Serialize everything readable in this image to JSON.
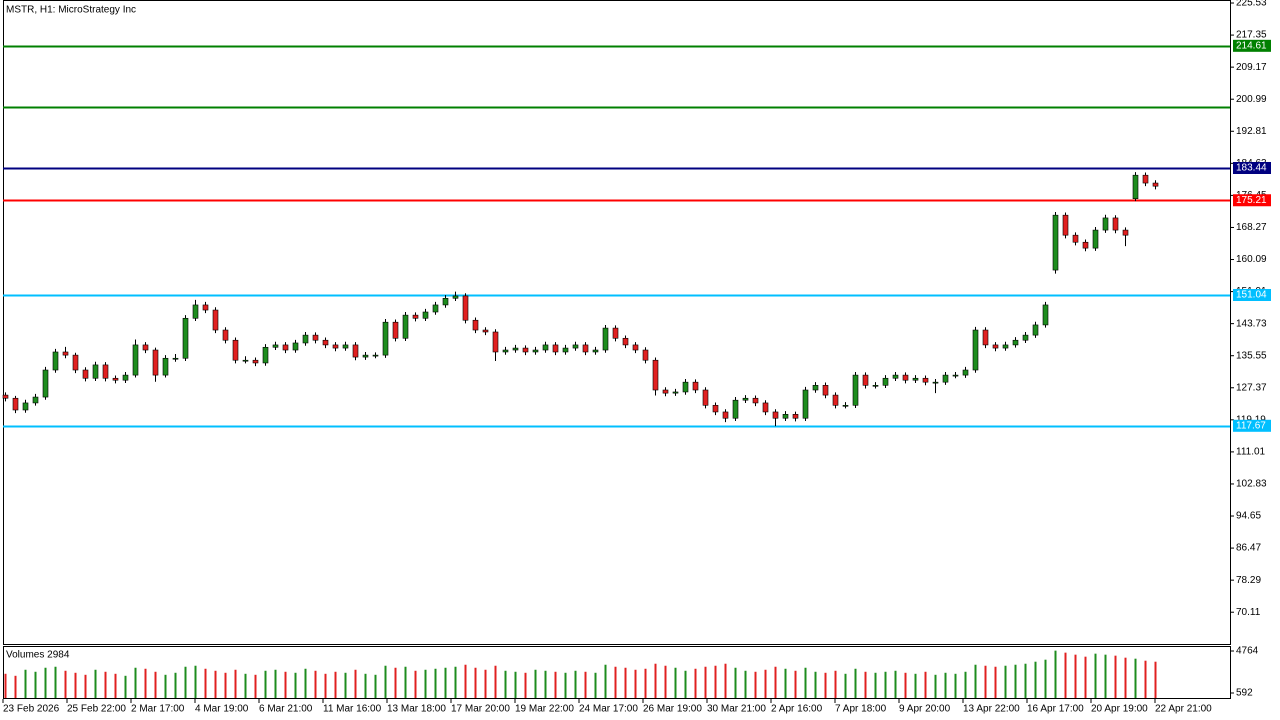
{
  "chart_data": {
    "type": "candlestick",
    "title": "MSTR, H1:  MicroStrategy Inc",
    "up_color": "#1e8c1e",
    "down_color": "#e02020",
    "wick_color": "#000000",
    "ylim": [
      62.0,
      226.3
    ],
    "yticks": [
      225.53,
      217.35,
      209.17,
      200.99,
      192.81,
      184.63,
      176.45,
      168.27,
      160.09,
      151.91,
      143.73,
      135.55,
      127.37,
      119.19,
      111.01,
      102.83,
      94.65,
      86.47,
      78.29,
      70.11
    ],
    "levels": [
      {
        "value": 214.61,
        "label": "214.61",
        "color": "#008000"
      },
      {
        "value": 198.99,
        "color": "#008000"
      },
      {
        "value": 183.44,
        "label": "183.44",
        "color": "#000080"
      },
      {
        "value": 175.21,
        "label": "175.21",
        "color": "#ff0000"
      },
      {
        "value": 151.04,
        "label": "151.04",
        "color": "#00bfff"
      },
      {
        "value": 117.67,
        "label": "117.67",
        "color": "#00bfff"
      }
    ],
    "xlabels": [
      "23 Feb 2026",
      "25 Feb 22:00",
      "2 Mar 17:00",
      "4 Mar 19:00",
      "6 Mar 21:00",
      "11 Mar 16:00",
      "13 Mar 18:00",
      "17 Mar 20:00",
      "19 Mar 22:00",
      "24 Mar 17:00",
      "26 Mar 19:00",
      "30 Mar 21:00",
      "2 Apr 16:00",
      "7 Apr 18:00",
      "9 Apr 20:00",
      "13 Apr 22:00",
      "16 Apr 17:00",
      "20 Apr 19:00",
      "22 Apr 21:00"
    ],
    "ohlc": [
      [
        125.5,
        126.2,
        123.9,
        124.7
      ],
      [
        124.7,
        125.3,
        120.9,
        121.7
      ],
      [
        121.7,
        124.3,
        121.0,
        123.5
      ],
      [
        123.5,
        125.8,
        122.8,
        125.0
      ],
      [
        125.0,
        132.7,
        124.3,
        131.9
      ],
      [
        131.9,
        137.3,
        131.2,
        136.5
      ],
      [
        136.5,
        137.8,
        134.9,
        135.7
      ],
      [
        135.7,
        136.3,
        131.1,
        131.9
      ],
      [
        131.9,
        132.6,
        129.0,
        129.8
      ],
      [
        129.8,
        134.0,
        129.1,
        133.2
      ],
      [
        133.2,
        133.9,
        129.0,
        129.8
      ],
      [
        129.8,
        130.5,
        128.5,
        129.3
      ],
      [
        129.3,
        131.4,
        128.6,
        130.6
      ],
      [
        130.6,
        139.7,
        130.0,
        138.3
      ],
      [
        138.3,
        139.0,
        136.2,
        137.0
      ],
      [
        137.0,
        137.6,
        128.9,
        130.6
      ],
      [
        130.6,
        135.7,
        130.0,
        134.9
      ],
      [
        134.9,
        136.0,
        134.0,
        134.9
      ],
      [
        134.9,
        145.9,
        134.2,
        145.1
      ],
      [
        145.1,
        149.8,
        144.4,
        148.5
      ],
      [
        148.5,
        149.3,
        146.4,
        147.2
      ],
      [
        147.2,
        147.9,
        141.3,
        142.1
      ],
      [
        142.1,
        142.8,
        138.7,
        139.5
      ],
      [
        139.5,
        140.2,
        133.6,
        134.4
      ],
      [
        134.4,
        135.4,
        133.6,
        134.4
      ],
      [
        134.4,
        135.1,
        132.9,
        133.7
      ],
      [
        133.7,
        138.5,
        133.0,
        137.7
      ],
      [
        137.7,
        139.1,
        137.0,
        138.3
      ],
      [
        138.3,
        139.0,
        136.2,
        137.0
      ],
      [
        137.0,
        139.6,
        136.3,
        138.8
      ],
      [
        138.8,
        141.6,
        138.1,
        140.8
      ],
      [
        140.8,
        141.5,
        138.7,
        139.5
      ],
      [
        139.5,
        140.2,
        137.5,
        138.3
      ],
      [
        138.3,
        139.0,
        136.7,
        137.5
      ],
      [
        137.5,
        139.1,
        136.8,
        138.3
      ],
      [
        138.3,
        139.0,
        134.4,
        135.2
      ],
      [
        135.2,
        136.5,
        134.5,
        135.7
      ],
      [
        135.7,
        136.4,
        134.9,
        135.7
      ],
      [
        135.7,
        144.9,
        135.0,
        144.1
      ],
      [
        144.1,
        144.8,
        139.2,
        140.0
      ],
      [
        140.0,
        146.7,
        139.3,
        145.9
      ],
      [
        145.9,
        146.6,
        144.3,
        145.1
      ],
      [
        145.1,
        147.5,
        144.4,
        146.7
      ],
      [
        146.7,
        149.3,
        146.0,
        148.5
      ],
      [
        148.5,
        151.0,
        147.8,
        150.2
      ],
      [
        150.2,
        151.9,
        149.5,
        150.8
      ],
      [
        150.8,
        151.5,
        143.8,
        144.6
      ],
      [
        144.6,
        145.3,
        141.3,
        142.1
      ],
      [
        142.1,
        142.8,
        140.8,
        141.6
      ],
      [
        141.6,
        142.3,
        134.2,
        136.5
      ],
      [
        136.5,
        137.8,
        135.8,
        137.0
      ],
      [
        137.0,
        138.3,
        136.3,
        137.5
      ],
      [
        137.5,
        138.2,
        135.7,
        136.5
      ],
      [
        136.5,
        137.8,
        135.8,
        137.0
      ],
      [
        137.0,
        139.1,
        136.3,
        138.3
      ],
      [
        138.3,
        139.0,
        135.7,
        136.5
      ],
      [
        136.5,
        138.3,
        135.8,
        137.5
      ],
      [
        137.5,
        139.1,
        136.8,
        138.3
      ],
      [
        138.3,
        139.0,
        135.7,
        136.5
      ],
      [
        136.5,
        137.8,
        135.8,
        137.0
      ],
      [
        137.0,
        143.4,
        136.3,
        142.6
      ],
      [
        142.6,
        143.3,
        139.2,
        140.0
      ],
      [
        140.0,
        140.7,
        137.5,
        138.3
      ],
      [
        138.3,
        139.0,
        136.2,
        137.0
      ],
      [
        137.0,
        137.7,
        133.6,
        134.4
      ],
      [
        134.4,
        135.1,
        125.4,
        126.8
      ],
      [
        126.8,
        127.5,
        125.2,
        126.0
      ],
      [
        126.0,
        127.1,
        125.3,
        126.3
      ],
      [
        126.3,
        129.6,
        125.6,
        128.8
      ],
      [
        128.8,
        129.5,
        126.0,
        126.8
      ],
      [
        126.8,
        127.5,
        122.1,
        122.9
      ],
      [
        122.9,
        123.6,
        120.4,
        121.2
      ],
      [
        121.2,
        121.9,
        118.6,
        119.6
      ],
      [
        119.6,
        125.0,
        118.9,
        124.2
      ],
      [
        124.2,
        125.5,
        123.5,
        124.7
      ],
      [
        124.7,
        125.4,
        122.7,
        123.5
      ],
      [
        123.5,
        124.2,
        120.4,
        121.2
      ],
      [
        121.2,
        121.9,
        117.6,
        119.6
      ],
      [
        119.6,
        121.4,
        118.9,
        120.6
      ],
      [
        120.6,
        121.3,
        118.8,
        119.6
      ],
      [
        119.6,
        127.6,
        118.9,
        126.8
      ],
      [
        126.8,
        128.8,
        126.1,
        128.0
      ],
      [
        128.0,
        128.7,
        124.7,
        125.5
      ],
      [
        125.5,
        126.2,
        122.1,
        122.9
      ],
      [
        122.9,
        123.7,
        122.1,
        122.9
      ],
      [
        122.9,
        131.4,
        122.2,
        130.6
      ],
      [
        130.6,
        131.3,
        127.2,
        128.0
      ],
      [
        128.0,
        128.8,
        127.2,
        128.0
      ],
      [
        128.0,
        130.6,
        127.3,
        129.8
      ],
      [
        129.8,
        131.4,
        129.1,
        130.6
      ],
      [
        130.6,
        131.3,
        128.5,
        129.3
      ],
      [
        129.3,
        130.6,
        128.6,
        129.8
      ],
      [
        129.8,
        130.5,
        128.0,
        128.8
      ],
      [
        128.8,
        129.6,
        126.0,
        128.8
      ],
      [
        128.8,
        131.4,
        128.1,
        130.6
      ],
      [
        130.6,
        131.4,
        129.8,
        130.6
      ],
      [
        130.6,
        132.7,
        129.9,
        131.9
      ],
      [
        131.9,
        142.9,
        131.2,
        142.1
      ],
      [
        142.1,
        142.8,
        137.5,
        138.3
      ],
      [
        138.3,
        139.0,
        136.7,
        137.5
      ],
      [
        137.5,
        139.1,
        136.8,
        138.3
      ],
      [
        138.3,
        140.3,
        137.6,
        139.5
      ],
      [
        139.5,
        141.6,
        138.8,
        140.8
      ],
      [
        140.8,
        144.2,
        140.1,
        143.4
      ],
      [
        143.4,
        149.3,
        142.7,
        148.5
      ],
      [
        157.4,
        172.2,
        156.5,
        171.4
      ],
      [
        171.4,
        172.1,
        165.5,
        166.3
      ],
      [
        166.3,
        167.0,
        163.7,
        164.5
      ],
      [
        164.5,
        165.2,
        162.2,
        163.0
      ],
      [
        163.0,
        168.4,
        162.3,
        167.6
      ],
      [
        167.6,
        171.5,
        166.9,
        170.7
      ],
      [
        170.7,
        171.4,
        166.8,
        167.6
      ],
      [
        167.6,
        168.3,
        163.5,
        166.3
      ],
      [
        175.6,
        182.4,
        175.0,
        181.6
      ],
      [
        181.6,
        182.3,
        178.8,
        179.6
      ],
      [
        179.6,
        180.3,
        178.0,
        178.8
      ]
    ],
    "volume_title": "Volumes 2984",
    "volume_ylim": [
      95,
      5161
    ],
    "volume_yticks": [
      4764,
      592
    ],
    "volumes": [
      2500,
      2300,
      2900,
      2700,
      3100,
      3200,
      2800,
      2600,
      2400,
      2900,
      2700,
      2500,
      2300,
      3100,
      3000,
      2700,
      2400,
      2600,
      3200,
      3300,
      3000,
      2800,
      2600,
      2900,
      2500,
      2400,
      2800,
      2900,
      2700,
      2600,
      3000,
      2800,
      2500,
      2700,
      2600,
      2900,
      2500,
      2400,
      3300,
      3100,
      3200,
      2800,
      2900,
      3000,
      3100,
      3200,
      3400,
      3100,
      2900,
      3300,
      2800,
      2700,
      2600,
      2900,
      2800,
      2700,
      2600,
      2800,
      2700,
      2600,
      3400,
      3200,
      3100,
      2900,
      3000,
      3500,
      3300,
      3100,
      2800,
      3000,
      3200,
      3300,
      3500,
      3100,
      2800,
      2700,
      2900,
      3200,
      3000,
      2800,
      3100,
      2700,
      2600,
      2800,
      2500,
      3000,
      2700,
      2600,
      2700,
      2800,
      2600,
      2500,
      2700,
      2400,
      2600,
      2500,
      2700,
      3400,
      3300,
      3200,
      3300,
      3400,
      3500,
      3700,
      3900,
      4800,
      4600,
      4400,
      4200,
      4500,
      4400,
      4300,
      4100,
      4000,
      3800,
      3700
    ]
  }
}
